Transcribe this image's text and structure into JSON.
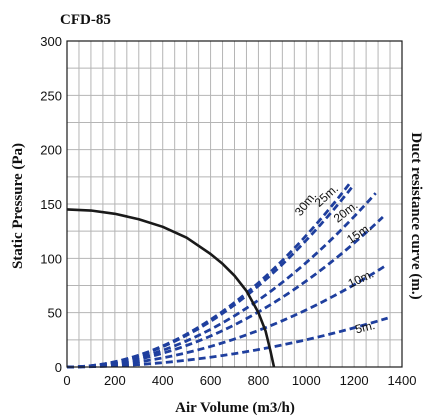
{
  "chart_data": {
    "type": "line",
    "title": "CFD-85",
    "xlabel": "Air Volume (m3/h)",
    "ylabel": "Static Pressure (Pa)",
    "right_label": "Duct resistance curve (m.)",
    "xlim": [
      0,
      1400
    ],
    "ylim": [
      0,
      300
    ],
    "x_ticks": [
      0,
      200,
      400,
      600,
      800,
      1000,
      1200,
      1400
    ],
    "y_ticks": [
      0,
      50,
      100,
      150,
      200,
      250,
      300
    ],
    "grid": true,
    "colors": {
      "fan_curve": "#1a1a1a",
      "duct_curves": "#1f3f9e",
      "grid": "#b5b5b5"
    },
    "fan_curve": {
      "x": [
        0,
        100,
        200,
        300,
        400,
        500,
        600,
        650,
        700,
        750,
        800,
        830,
        850,
        865
      ],
      "y": [
        145,
        144,
        141,
        136,
        129,
        119,
        104,
        95,
        84,
        70,
        50,
        33,
        15,
        0
      ]
    },
    "duct_curves": [
      {
        "label": "30m.",
        "x_end": 1185,
        "y_end": 170
      },
      {
        "label": "25m.",
        "x_end": 1200,
        "y_end": 168
      },
      {
        "label": "20m.",
        "x_end": 1290,
        "y_end": 160
      },
      {
        "label": "15m.",
        "x_end": 1320,
        "y_end": 138
      },
      {
        "label": "10m.",
        "x_end": 1330,
        "y_end": 93
      },
      {
        "label": "5m.",
        "x_end": 1340,
        "y_end": 45
      }
    ],
    "duct_labels": [
      {
        "label": "30m.",
        "x": 1010,
        "y": 148,
        "angle": -52
      },
      {
        "label": "25m.",
        "x": 1095,
        "y": 155,
        "angle": -42
      },
      {
        "label": "20m.",
        "x": 1175,
        "y": 140,
        "angle": -38
      },
      {
        "label": "15m.",
        "x": 1230,
        "y": 120,
        "angle": -34
      },
      {
        "label": "10m.",
        "x": 1235,
        "y": 78,
        "angle": -25
      },
      {
        "label": "5m.",
        "x": 1250,
        "y": 33,
        "angle": -14
      }
    ]
  }
}
